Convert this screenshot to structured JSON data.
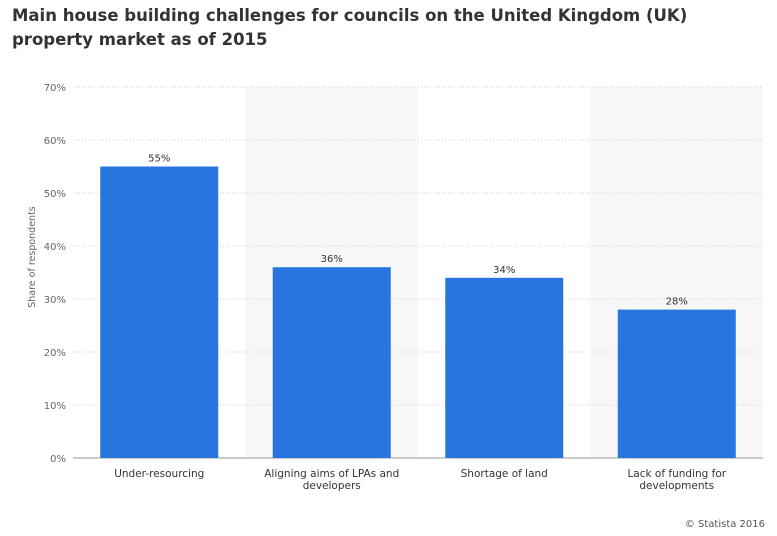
{
  "title": "Main house building challenges for councils on the United Kingdom (UK) property market as of 2015",
  "credit": "© Statista 2016",
  "chart_data": {
    "type": "bar",
    "title": "Main house building challenges for councils on the United Kingdom (UK) property market as of 2015",
    "xlabel": "",
    "ylabel": "Share of respondents",
    "ylim": [
      0,
      70
    ],
    "yticks": [
      0,
      10,
      20,
      30,
      40,
      50,
      60,
      70
    ],
    "ytick_labels": [
      "0%",
      "10%",
      "20%",
      "30%",
      "40%",
      "50%",
      "60%",
      "70%"
    ],
    "grid": true,
    "categories": [
      [
        "Under-resourcing"
      ],
      [
        "Aligning aims of LPAs and",
        "developers"
      ],
      [
        "Shortage of land"
      ],
      [
        "Lack of funding for",
        "developments"
      ]
    ],
    "values": [
      55,
      36,
      34,
      28
    ],
    "value_labels": [
      "55%",
      "36%",
      "34%",
      "28%"
    ],
    "bar_color": "#2876dd",
    "band_color": "#f7f7f7"
  }
}
